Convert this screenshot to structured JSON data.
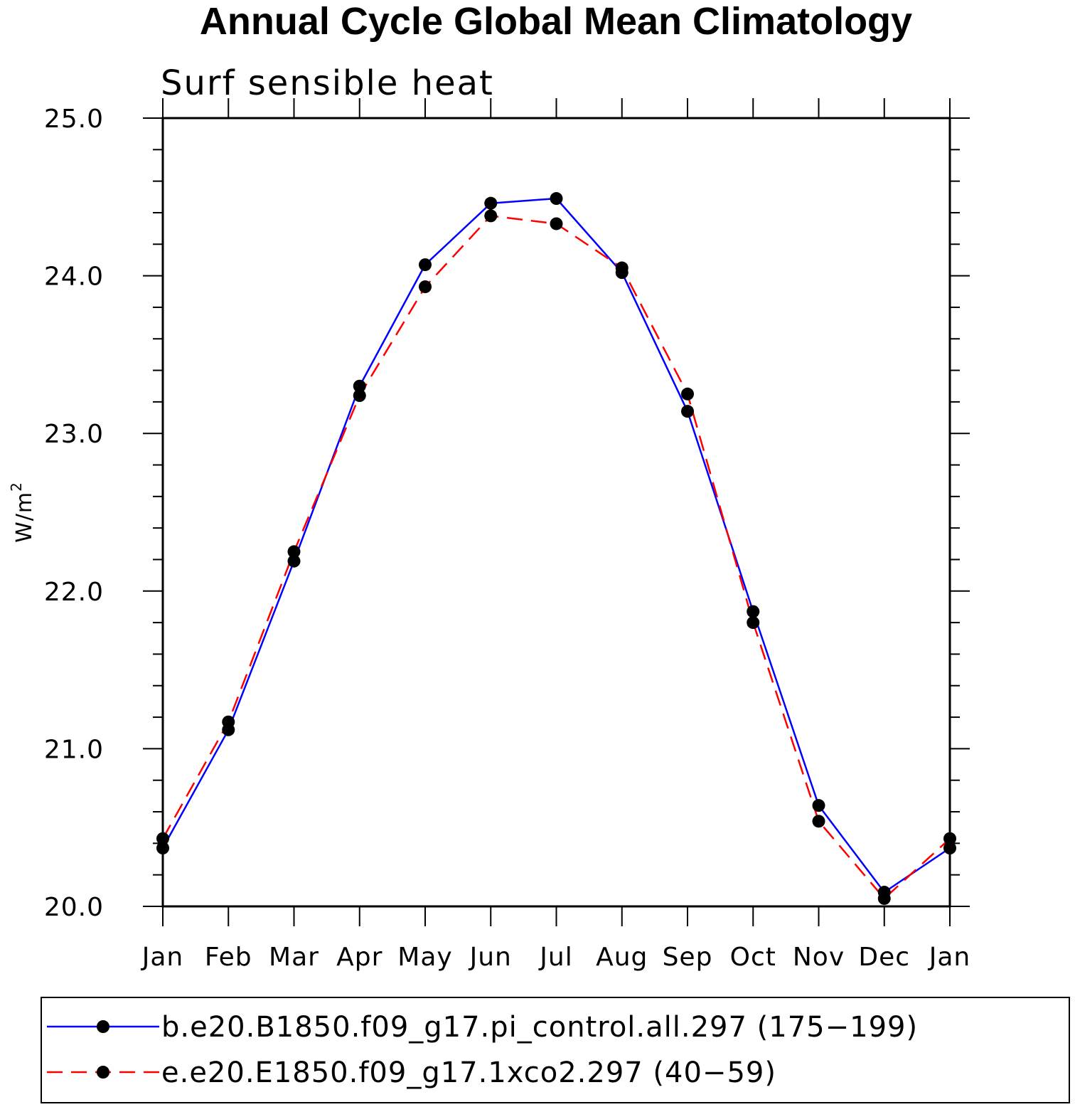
{
  "chart_data": {
    "type": "line",
    "title": "Annual Cycle Global Mean Climatology",
    "subtitle": "Surf sensible heat",
    "ylabel": "W/m",
    "ylabel_superscript": "2",
    "xlabel": "",
    "ylim": [
      20.0,
      25.0
    ],
    "ytick_labels": [
      "20.0",
      "21.0",
      "22.0",
      "23.0",
      "24.0",
      "25.0"
    ],
    "ytick_values": [
      20.0,
      21.0,
      22.0,
      23.0,
      24.0,
      25.0
    ],
    "categories": [
      "Jan",
      "Feb",
      "Mar",
      "Apr",
      "May",
      "Jun",
      "Jul",
      "Aug",
      "Sep",
      "Oct",
      "Nov",
      "Dec",
      "Jan"
    ],
    "grid": false,
    "legend_position": "bottom",
    "series": [
      {
        "name": "b.e20.B1850.f09_g17.pi_control.all.297 (175−199)",
        "color": "#0000ff",
        "line_style": "solid",
        "marker": "filled-circle",
        "values": [
          20.37,
          21.12,
          22.19,
          23.3,
          24.07,
          24.46,
          24.49,
          24.02,
          23.14,
          21.87,
          20.64,
          20.09,
          20.37
        ]
      },
      {
        "name": "e.e20.E1850.f09_g17.1xco2.297 (40−59)",
        "color": "#ff0000",
        "line_style": "dashed",
        "marker": "filled-circle",
        "values": [
          20.43,
          21.17,
          22.25,
          23.24,
          23.93,
          24.38,
          24.33,
          24.05,
          23.25,
          21.8,
          20.54,
          20.05,
          20.43
        ]
      }
    ]
  }
}
